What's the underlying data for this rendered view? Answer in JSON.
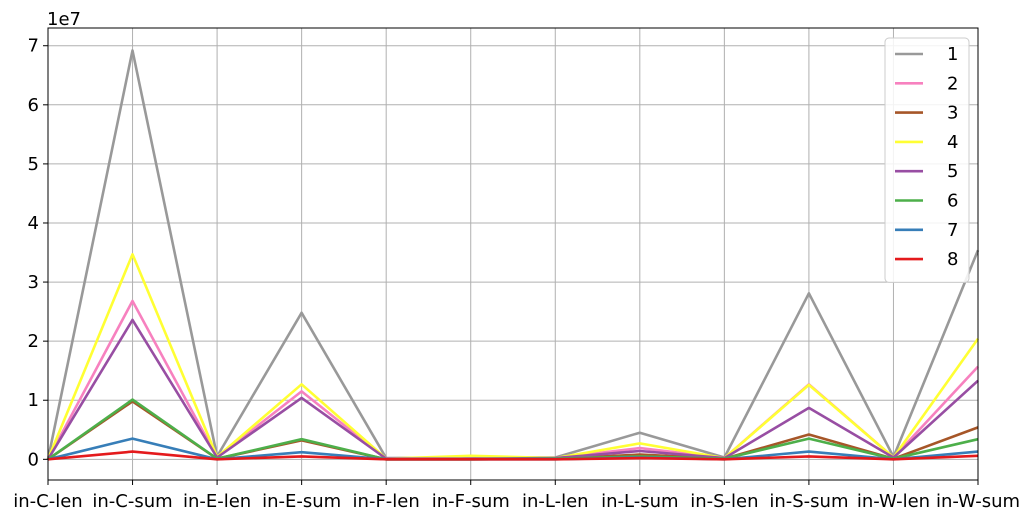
{
  "chart_data": {
    "type": "line",
    "title": "",
    "xlabel": "",
    "ylabel": "",
    "y_multiplier_label": "1e7",
    "categories": [
      "in-C-len",
      "in-C-sum",
      "in-E-len",
      "in-E-sum",
      "in-F-len",
      "in-F-sum",
      "in-L-len",
      "in-L-sum",
      "in-S-len",
      "in-S-sum",
      "in-W-len",
      "in-W-sum"
    ],
    "ylim": [
      -0.35,
      7.3
    ],
    "yticks": [
      0,
      1,
      2,
      3,
      4,
      5,
      6,
      7
    ],
    "grid": true,
    "legend_position": "top-right",
    "series": [
      {
        "name": "1",
        "color": "#999999",
        "values": [
          0.0,
          6.92,
          0.05,
          2.48,
          0.02,
          0.03,
          0.03,
          0.45,
          0.03,
          2.81,
          0.04,
          3.54
        ]
      },
      {
        "name": "2",
        "color": "#f781bf",
        "values": [
          0.0,
          2.68,
          0.03,
          1.15,
          0.01,
          0.01,
          0.02,
          0.19,
          0.02,
          1.27,
          0.03,
          1.57
        ]
      },
      {
        "name": "3",
        "color": "#a65628",
        "values": [
          0.0,
          0.98,
          0.01,
          0.32,
          0.0,
          0.0,
          0.01,
          0.08,
          0.01,
          0.42,
          0.01,
          0.54
        ]
      },
      {
        "name": "4",
        "color": "#ffff33",
        "values": [
          0.0,
          3.47,
          0.04,
          1.27,
          0.01,
          0.06,
          0.02,
          0.27,
          0.02,
          1.26,
          0.03,
          2.04
        ]
      },
      {
        "name": "5",
        "color": "#984ea3",
        "values": [
          0.0,
          2.36,
          0.03,
          1.04,
          0.01,
          0.01,
          0.02,
          0.14,
          0.02,
          0.87,
          0.03,
          1.33
        ]
      },
      {
        "name": "6",
        "color": "#4daf4a",
        "values": [
          0.0,
          1.01,
          0.01,
          0.34,
          0.0,
          0.0,
          0.01,
          0.05,
          0.01,
          0.35,
          0.01,
          0.34
        ]
      },
      {
        "name": "7",
        "color": "#377eb8",
        "values": [
          0.0,
          0.35,
          0.0,
          0.12,
          0.0,
          0.0,
          0.0,
          0.03,
          0.0,
          0.13,
          0.0,
          0.13
        ]
      },
      {
        "name": "8",
        "color": "#e41a1c",
        "values": [
          0.0,
          0.13,
          0.0,
          0.05,
          0.0,
          0.0,
          0.0,
          0.02,
          0.0,
          0.05,
          0.0,
          0.06
        ]
      }
    ]
  }
}
